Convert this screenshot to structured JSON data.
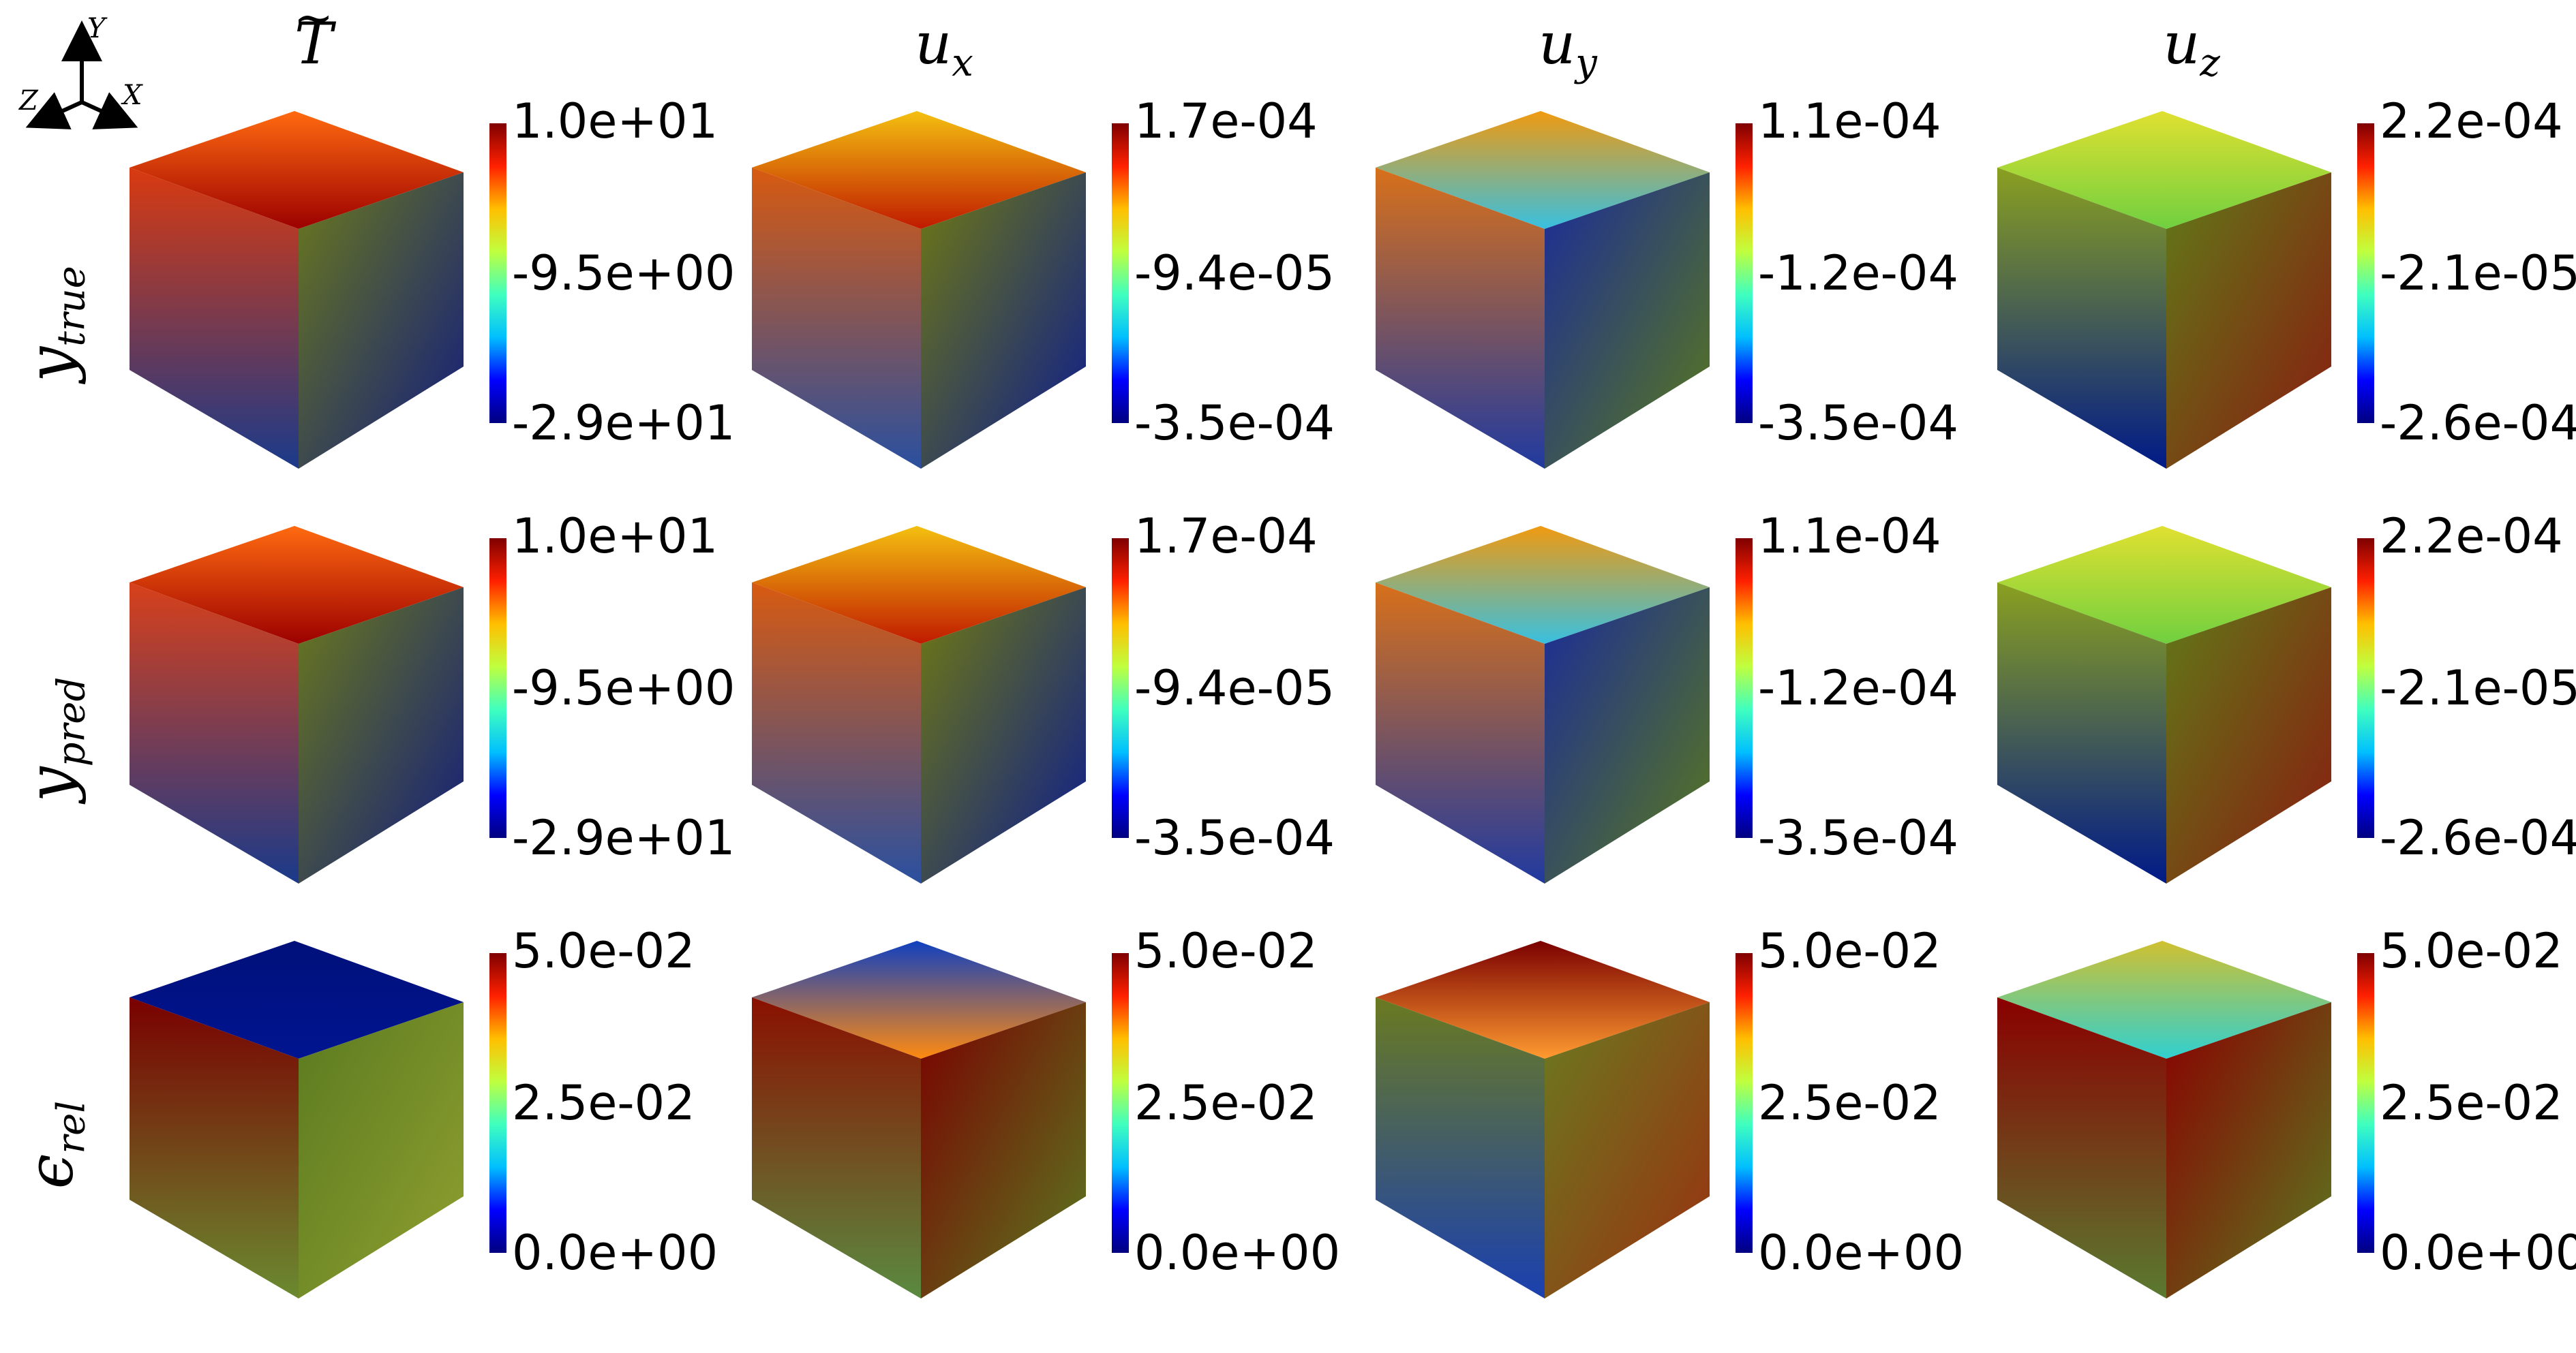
{
  "figure": {
    "axes_triad": {
      "y": "Y",
      "z": "Z",
      "x": "X"
    },
    "columns": [
      {
        "key": "T",
        "base": "T",
        "accent": "~",
        "sub": ""
      },
      {
        "key": "ux",
        "base": "u",
        "sub": "x"
      },
      {
        "key": "uy",
        "base": "u",
        "sub": "y"
      },
      {
        "key": "uz",
        "base": "u",
        "sub": "z"
      }
    ],
    "rows": [
      {
        "key": "true",
        "base": "y",
        "sub": "true"
      },
      {
        "key": "pred",
        "base": "y",
        "sub": "pred"
      },
      {
        "key": "rel",
        "base": "ϵ",
        "sub": "rel"
      }
    ],
    "colorbars": {
      "r0c0": [
        "1.0e+01",
        "-9.5e+00",
        "-2.9e+01"
      ],
      "r0c1": [
        "1.7e-04",
        "-9.4e-05",
        "-3.5e-04"
      ],
      "r0c2": [
        "1.1e-04",
        "-1.2e-04",
        "-3.5e-04"
      ],
      "r0c3": [
        "2.2e-04",
        "-2.1e-05",
        "-2.6e-04"
      ],
      "r1c0": [
        "1.0e+01",
        "-9.5e+00",
        "-2.9e+01"
      ],
      "r1c1": [
        "1.7e-04",
        "-9.4e-05",
        "-3.5e-04"
      ],
      "r1c2": [
        "1.1e-04",
        "-1.2e-04",
        "-3.5e-04"
      ],
      "r1c3": [
        "2.2e-04",
        "-2.1e-05",
        "-2.6e-04"
      ],
      "r2c0": [
        "5.0e-02",
        "2.5e-02",
        "0.0e+00"
      ],
      "r2c1": [
        "5.0e-02",
        "2.5e-02",
        "0.0e+00"
      ],
      "r2c2": [
        "5.0e-02",
        "2.5e-02",
        "0.0e+00"
      ],
      "r2c3": [
        "5.0e-02",
        "2.5e-02",
        "0.0e+00"
      ]
    },
    "colormap": [
      "#00007f",
      "#0000ff",
      "#00bfff",
      "#3fffbf",
      "#bfff3f",
      "#ffbf00",
      "#ff2000",
      "#7f0000"
    ],
    "cube_colors": {
      "r0c0": {
        "top": [
          "#ff6a10",
          "#9c0000"
        ],
        "left": [
          "#d93a10",
          "#1a3a8a"
        ],
        "right": [
          "#6c7a1a",
          "#101a80"
        ]
      },
      "r0c1": {
        "top": [
          "#f4c010",
          "#c01a00"
        ],
        "left": [
          "#d85a10",
          "#2a50a0"
        ],
        "right": [
          "#707a10",
          "#0a1a90"
        ]
      },
      "r0c2": {
        "top": [
          "#f09a10",
          "#38c0e0"
        ],
        "left": [
          "#d8701a",
          "#203aa0"
        ],
        "right": [
          "#1a2a9a",
          "#5a7a1a"
        ]
      },
      "r0c3": {
        "top": [
          "#e0e030",
          "#70d040"
        ],
        "left": [
          "#8aa020",
          "#001a88"
        ],
        "right": [
          "#607a18",
          "#8a1a10"
        ]
      },
      "r1c0": {
        "top": [
          "#ff6a10",
          "#9c0000"
        ],
        "left": [
          "#d8401a",
          "#1a3a8a"
        ],
        "right": [
          "#6c7a1a",
          "#101a80"
        ]
      },
      "r1c1": {
        "top": [
          "#f4c010",
          "#c01a00"
        ],
        "left": [
          "#d85a10",
          "#2a50a0"
        ],
        "right": [
          "#707a10",
          "#0a1a90"
        ]
      },
      "r1c2": {
        "top": [
          "#f09a10",
          "#38c0e0"
        ],
        "left": [
          "#d8701a",
          "#203aa0"
        ],
        "right": [
          "#1a2a9a",
          "#5a7a1a"
        ]
      },
      "r1c3": {
        "top": [
          "#e0e030",
          "#70d040"
        ],
        "left": [
          "#8aa020",
          "#001a88"
        ],
        "right": [
          "#607a18",
          "#8a1a10"
        ]
      },
      "r2c0": {
        "top": [
          "#00107a",
          "#001490"
        ],
        "left": [
          "#7a0000",
          "#6a8a30"
        ],
        "right": [
          "#5a7a20",
          "#90a030"
        ]
      },
      "r2c1": {
        "top": [
          "#1040c0",
          "#ff8a10"
        ],
        "left": [
          "#8a1000",
          "#5a8a40"
        ],
        "right": [
          "#7a0000",
          "#5a7a20"
        ]
      },
      "r2c2": {
        "top": [
          "#7a0000",
          "#ff9a30"
        ],
        "left": [
          "#6a7a20",
          "#1a40b0"
        ],
        "right": [
          "#6a7a20",
          "#9a3010"
        ]
      },
      "r2c3": {
        "top": [
          "#d0c030",
          "#30d0d0"
        ],
        "left": [
          "#8a0000",
          "#5a7a30"
        ],
        "right": [
          "#8a0000",
          "#5a7a20"
        ]
      }
    }
  }
}
